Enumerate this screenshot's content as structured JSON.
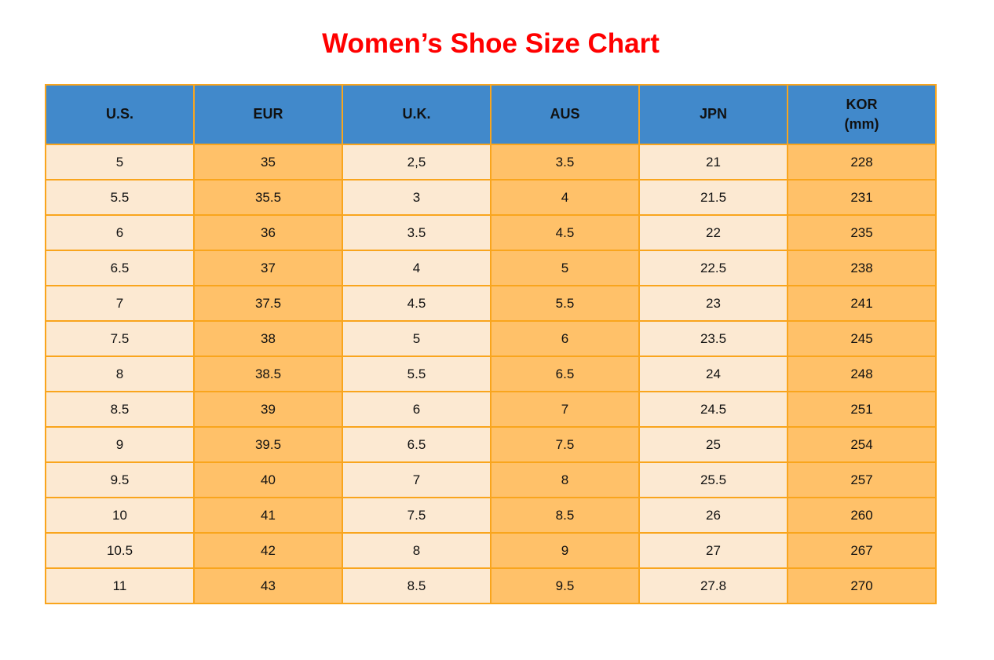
{
  "page": {
    "title": "Women’s Shoe Size Chart"
  },
  "colors": {
    "title_red": "#ff0000",
    "header_blue": "#4189cb",
    "cell_cream": "#fce9d2",
    "cell_orange": "#ffc169",
    "border_orange": "#f9a51d",
    "text": "#111111"
  },
  "table": {
    "kor_header_lines": [
      "KOR",
      "(mm)"
    ]
  },
  "chart_data": {
    "type": "table",
    "title": "Women’s Shoe Size Chart",
    "columns": [
      "U.S.",
      "EUR",
      "U.K.",
      "AUS",
      "JPN",
      "KOR (mm)"
    ],
    "rows": [
      [
        "5",
        "35",
        "2,5",
        "3.5",
        "21",
        "228"
      ],
      [
        "5.5",
        "35.5",
        "3",
        "4",
        "21.5",
        "231"
      ],
      [
        "6",
        "36",
        "3.5",
        "4.5",
        "22",
        "235"
      ],
      [
        "6.5",
        "37",
        "4",
        "5",
        "22.5",
        "238"
      ],
      [
        "7",
        "37.5",
        "4.5",
        "5.5",
        "23",
        "241"
      ],
      [
        "7.5",
        "38",
        "5",
        "6",
        "23.5",
        "245"
      ],
      [
        "8",
        "38.5",
        "5.5",
        "6.5",
        "24",
        "248"
      ],
      [
        "8.5",
        "39",
        "6",
        "7",
        "24.5",
        "251"
      ],
      [
        "9",
        "39.5",
        "6.5",
        "7.5",
        "25",
        "254"
      ],
      [
        "9.5",
        "40",
        "7",
        "8",
        "25.5",
        "257"
      ],
      [
        "10",
        "41",
        "7.5",
        "8.5",
        "26",
        "260"
      ],
      [
        "10.5",
        "42",
        "8",
        "9",
        "27",
        "267"
      ],
      [
        "11",
        "43",
        "8.5",
        "9.5",
        "27.8",
        "270"
      ]
    ],
    "layout": {
      "header_fill": "alternating cream/orange columns",
      "grid": true,
      "column_count": 6,
      "row_count": 13
    }
  }
}
